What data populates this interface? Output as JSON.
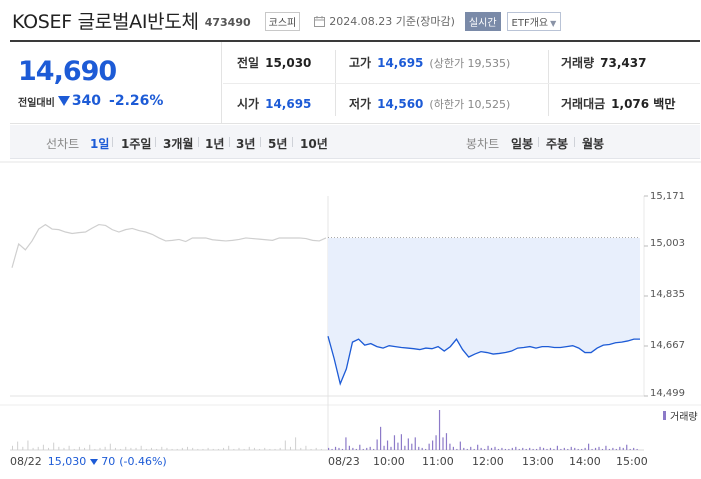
{
  "header": {
    "name": "KOSEF 글로벌AI반도체",
    "code": "473490",
    "market": "코스피",
    "date": "2024.08.23 기준(장마감)",
    "live_label": "실시간",
    "etf_label": "ETF개요"
  },
  "summary": {
    "price": "14,690",
    "change_label": "전일대비",
    "change": "340",
    "change_pct": "-2.26%",
    "direction": "down",
    "prev_label": "전일",
    "prev": "15,030",
    "open_label": "시가",
    "open": "14,695",
    "high_label": "고가",
    "high": "14,695",
    "upper_limit": "(상한가 19,535)",
    "low_label": "저가",
    "low": "14,560",
    "lower_limit": "(하한가 10,525)",
    "volume_label": "거래량",
    "volume": "73,437",
    "amount_label": "거래대금",
    "amount": "1,076 백만"
  },
  "tabs": {
    "line_label": "선차트",
    "line_periods": [
      "1일",
      "1주일",
      "3개월",
      "1년",
      "3년",
      "5년",
      "10년"
    ],
    "selected_line": "1일",
    "candle_label": "봉차트",
    "candle_periods": [
      "일봉",
      "주봉",
      "월봉"
    ]
  },
  "chart_data": {
    "type": "line",
    "y_ticks": [
      "15,171",
      "15,003",
      "14,835",
      "14,667",
      "14,499"
    ],
    "ylim": [
      14499,
      15171
    ],
    "x_ticks": [
      "08/23",
      "10:00",
      "11:00",
      "12:00",
      "13:00",
      "14:00",
      "15:00"
    ],
    "previous_day": {
      "label": "08/22",
      "close": "15,030",
      "change": "70",
      "change_pct": "(-0.46%)",
      "series": [
        14930,
        15010,
        14990,
        15020,
        15060,
        15075,
        15060,
        15058,
        15050,
        15045,
        15048,
        15050,
        15063,
        15075,
        15072,
        15058,
        15050,
        15058,
        15062,
        15055,
        15050,
        15042,
        15030,
        15020,
        15022,
        15025,
        15018,
        15030,
        15030,
        15030,
        15024,
        15022,
        15020,
        15022,
        15025,
        15030,
        15028,
        15026,
        15024,
        15022,
        15030,
        15030,
        15030,
        15030,
        15028,
        15022,
        15020,
        15030
      ]
    },
    "today": {
      "series": [
        14700,
        14625,
        14540,
        14590,
        14680,
        14690,
        14670,
        14675,
        14665,
        14660,
        14668,
        14665,
        14662,
        14660,
        14658,
        14655,
        14660,
        14658,
        14665,
        14650,
        14665,
        14690,
        14655,
        14630,
        14640,
        14648,
        14645,
        14640,
        14642,
        14645,
        14650,
        14660,
        14662,
        14665,
        14660,
        14665,
        14665,
        14662,
        14662,
        14665,
        14668,
        14660,
        14645,
        14645,
        14660,
        14670,
        14672,
        14678,
        14680,
        14684,
        14690,
        14690
      ]
    },
    "reference_price": 15030,
    "volume": {
      "label": "거래량",
      "prev_day": [
        4,
        8,
        3,
        9,
        2,
        3,
        5,
        2,
        7,
        3,
        2,
        4,
        1,
        3,
        2,
        5,
        1,
        2,
        3,
        6,
        2,
        1,
        3,
        2,
        2,
        4,
        1,
        2,
        1,
        3,
        2,
        1,
        1,
        2,
        3,
        2,
        1,
        1,
        2,
        1,
        1,
        2,
        4,
        1,
        2,
        1,
        3,
        2,
        1,
        2,
        1,
        1,
        2,
        9,
        3,
        12,
        2,
        4,
        1,
        2,
        1
      ],
      "today": [
        2,
        1,
        3,
        2,
        1,
        12,
        4,
        2,
        1,
        5,
        1,
        2,
        3,
        1,
        10,
        22,
        4,
        9,
        3,
        14,
        7,
        15,
        4,
        11,
        6,
        12,
        3,
        2,
        1,
        6,
        9,
        14,
        38,
        12,
        16,
        6,
        3,
        1,
        8,
        2,
        1,
        3,
        1,
        5,
        2,
        1,
        4,
        2,
        3,
        1,
        2,
        1,
        1,
        2,
        3,
        1,
        2,
        1,
        2,
        1,
        1,
        3,
        2,
        1,
        2,
        1,
        4,
        1,
        2,
        1,
        3,
        2,
        1,
        1,
        2,
        6,
        1,
        2,
        3,
        1,
        4,
        1,
        2,
        1,
        3,
        2,
        5,
        1,
        2,
        1
      ]
    }
  },
  "colors": {
    "accent": "#1d5bd6",
    "area_fill": "#e8effc",
    "prev_line": "#cfcfcf",
    "volume_today": "#8c7ac8",
    "volume_prev": "#cfcfcf"
  }
}
